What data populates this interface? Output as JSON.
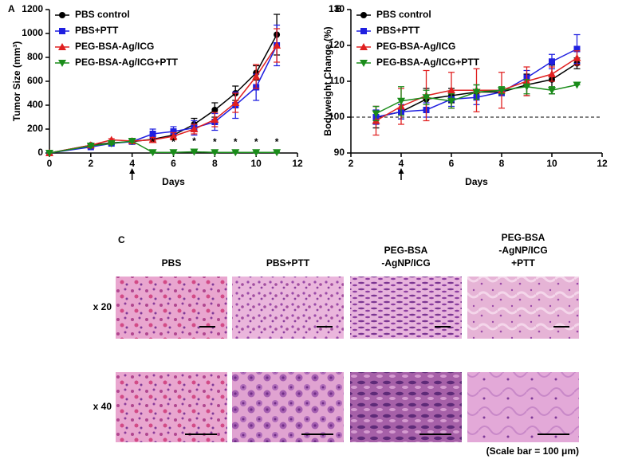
{
  "chart_data": [
    {
      "type": "line",
      "panel": "A",
      "y_label": "Tumor Size (mm³)",
      "x_label": "Days",
      "x": [
        0,
        2,
        3,
        4,
        5,
        6,
        7,
        8,
        9,
        10,
        11
      ],
      "xlim": [
        0,
        12
      ],
      "xticks": [
        0,
        2,
        4,
        6,
        8,
        10,
        12
      ],
      "ylim": [
        0,
        1200
      ],
      "yticks": [
        0,
        200,
        400,
        600,
        800,
        1000,
        1200
      ],
      "grid": false,
      "legend": "top-left",
      "arrow_at": 4,
      "significance": {
        "label": "*",
        "x": [
          5,
          6,
          7,
          8,
          9,
          10,
          11
        ]
      },
      "series": [
        {
          "name": "PBS control",
          "color": "#000000",
          "marker": "circle",
          "values": [
            0,
            65,
            85,
            95,
            115,
            150,
            240,
            360,
            500,
            670,
            990
          ],
          "errors": [
            0,
            10,
            10,
            10,
            20,
            30,
            50,
            60,
            60,
            60,
            170
          ]
        },
        {
          "name": "PBS+PTT",
          "color": "#1f1fe0",
          "marker": "square",
          "values": [
            0,
            50,
            80,
            95,
            160,
            180,
            210,
            260,
            400,
            550,
            900
          ],
          "errors": [
            0,
            10,
            10,
            10,
            40,
            40,
            60,
            70,
            110,
            110,
            170
          ]
        },
        {
          "name": "PEG-BSA-Ag/ICG",
          "color": "#e02020",
          "marker": "triangle-up",
          "values": [
            0,
            65,
            110,
            100,
            110,
            140,
            200,
            280,
            420,
            640,
            900
          ],
          "errors": [
            0,
            10,
            10,
            10,
            20,
            30,
            40,
            60,
            80,
            100,
            140
          ]
        },
        {
          "name": "PEG-BSA-Ag/ICG+PTT",
          "color": "#1a8c1a",
          "marker": "triangle-down",
          "values": [
            0,
            60,
            80,
            100,
            5,
            5,
            10,
            5,
            5,
            5,
            5
          ],
          "errors": [
            0,
            10,
            10,
            10,
            3,
            3,
            4,
            3,
            3,
            3,
            3
          ]
        }
      ]
    },
    {
      "type": "line",
      "panel": "B",
      "y_label": "Bodyweight Change (%)",
      "x_label": "Days",
      "x": [
        3,
        4,
        5,
        6,
        7,
        8,
        9,
        10,
        11
      ],
      "xlim": [
        2,
        12
      ],
      "xticks": [
        2,
        4,
        6,
        8,
        10,
        12
      ],
      "ylim": [
        90,
        130
      ],
      "yticks": [
        90,
        100,
        110,
        120,
        130
      ],
      "grid": false,
      "legend": "top-left",
      "arrow_at": 4,
      "reference_line": 100,
      "series": [
        {
          "name": "PBS control",
          "color": "#000000",
          "marker": "circle",
          "values": [
            100,
            101.5,
            105,
            106,
            107,
            107,
            109,
            110.5,
            115
          ],
          "errors": [
            3,
            2,
            3,
            2,
            2,
            1,
            3,
            4,
            1.5
          ]
        },
        {
          "name": "PBS+PTT",
          "color": "#1f1fe0",
          "marker": "square",
          "values": [
            100,
            101.5,
            102,
            105,
            105.5,
            107,
            111,
            115.5,
            119
          ],
          "errors": [
            2,
            2,
            2,
            2,
            2,
            1,
            2,
            2,
            4
          ]
        },
        {
          "name": "PEG-BSA-Ag/ICG",
          "color": "#e02020",
          "marker": "triangle-up",
          "values": [
            99,
            103,
            106,
            107.5,
            107.5,
            107.5,
            110,
            112,
            116.5
          ],
          "errors": [
            4,
            5,
            7,
            5,
            6,
            5,
            4,
            2,
            2
          ]
        },
        {
          "name": "PEG-BSA-Ag/ICG+PTT",
          "color": "#1a8c1a",
          "marker": "triangle-down",
          "values": [
            101,
            104.5,
            105.5,
            104.5,
            107,
            107.5,
            108.5,
            107.5,
            109
          ],
          "errors": [
            2,
            4,
            2,
            2,
            2,
            1,
            2,
            1,
            0
          ]
        }
      ]
    }
  ],
  "histology": {
    "panel": "C",
    "columns": [
      [
        "PBS"
      ],
      [
        "PBS+PTT"
      ],
      [
        "PEG-BSA",
        "-AgNP/ICG"
      ],
      [
        "PEG-BSA",
        "-AgNP/ICG",
        "+PTT"
      ]
    ],
    "rows": [
      "x 20",
      "x 40"
    ],
    "scale_note": "(Scale bar = 100 μm)"
  }
}
